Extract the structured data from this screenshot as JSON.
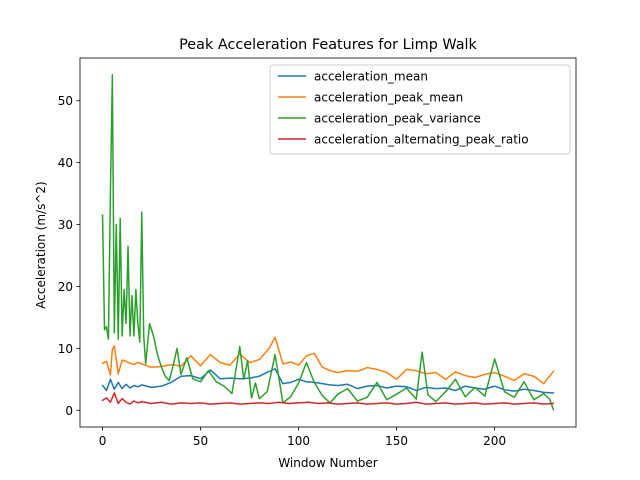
{
  "chart_data": {
    "type": "line",
    "title": "Peak Acceleration Features for Limp Walk",
    "xlabel": "Window Number",
    "ylabel": "Acceleration (m/s^2)",
    "xlim": [
      -11.5,
      241.5
    ],
    "ylim": [
      -2.7,
      56.9
    ],
    "xticks": [
      0,
      50,
      100,
      150,
      200
    ],
    "yticks": [
      0,
      10,
      20,
      30,
      40,
      50
    ],
    "legend_position": "upper right",
    "series": [
      {
        "name": "acceleration_mean",
        "color": "#1f77b4",
        "x": [
          0,
          2,
          4,
          6,
          8,
          10,
          12,
          14,
          16,
          18,
          20,
          25,
          30,
          35,
          40,
          45,
          50,
          55,
          60,
          65,
          70,
          75,
          80,
          85,
          88,
          92,
          96,
          100,
          104,
          108,
          112,
          116,
          120,
          125,
          130,
          135,
          140,
          145,
          150,
          155,
          160,
          165,
          170,
          175,
          180,
          185,
          190,
          195,
          200,
          205,
          210,
          215,
          220,
          225,
          230
        ],
        "y": [
          4.0,
          3.2,
          5.0,
          3.4,
          4.5,
          3.5,
          4.2,
          3.6,
          4.0,
          3.8,
          4.1,
          3.7,
          3.9,
          4.5,
          5.5,
          5.6,
          5.1,
          6.5,
          5.1,
          5.2,
          5.1,
          5.2,
          5.5,
          6.3,
          6.7,
          4.3,
          4.5,
          5.0,
          4.6,
          4.5,
          4.3,
          4.1,
          4.0,
          4.2,
          3.5,
          3.9,
          4.0,
          3.6,
          3.9,
          3.8,
          3.2,
          3.7,
          3.5,
          3.6,
          3.2,
          3.9,
          3.6,
          3.4,
          3.9,
          3.3,
          3.1,
          3.4,
          3.2,
          2.9,
          2.8
        ]
      },
      {
        "name": "acceleration_peak_mean",
        "color": "#ff7f0e",
        "x": [
          0,
          2,
          4,
          5,
          6,
          8,
          10,
          12,
          14,
          16,
          18,
          20,
          24,
          28,
          32,
          36,
          40,
          45,
          50,
          55,
          60,
          65,
          70,
          75,
          80,
          85,
          88,
          92,
          96,
          100,
          104,
          108,
          112,
          116,
          120,
          125,
          130,
          135,
          140,
          145,
          150,
          155,
          160,
          165,
          170,
          175,
          180,
          185,
          190,
          195,
          200,
          205,
          210,
          215,
          220,
          225,
          230
        ],
        "y": [
          7.6,
          7.9,
          5.7,
          9.8,
          10.4,
          5.9,
          8.1,
          7.9,
          7.6,
          7.4,
          7.7,
          7.5,
          7.0,
          7.0,
          7.2,
          7.4,
          7.1,
          8.8,
          7.2,
          9.0,
          7.7,
          7.3,
          9.1,
          7.7,
          8.2,
          10.0,
          11.8,
          7.5,
          7.8,
          7.3,
          8.8,
          9.2,
          7.0,
          6.4,
          6.1,
          6.4,
          6.3,
          6.9,
          6.6,
          6.1,
          5.0,
          6.6,
          6.4,
          5.9,
          6.1,
          5.0,
          6.2,
          5.6,
          5.3,
          5.8,
          6.1,
          5.5,
          4.8,
          5.9,
          5.5,
          4.3,
          6.3
        ]
      },
      {
        "name": "acceleration_peak_variance",
        "color": "#2ca02c",
        "x": [
          0,
          1,
          2,
          3,
          4,
          5,
          6,
          7,
          8,
          9,
          10,
          11,
          12,
          13,
          14,
          15,
          16,
          17,
          18,
          19,
          20,
          21,
          22,
          24,
          26,
          28,
          30,
          32,
          34,
          36,
          38,
          40,
          43,
          46,
          50,
          54,
          58,
          62,
          66,
          70,
          72,
          74,
          76,
          78,
          80,
          84,
          88,
          92,
          96,
          100,
          104,
          108,
          112,
          116,
          120,
          125,
          130,
          135,
          140,
          145,
          150,
          155,
          160,
          163,
          166,
          170,
          175,
          180,
          185,
          190,
          195,
          200,
          205,
          210,
          215,
          220,
          225,
          228,
          230
        ],
        "y": [
          31.5,
          13.0,
          13.5,
          11.5,
          35.0,
          54.2,
          12.5,
          30.0,
          11.5,
          31.0,
          12.0,
          19.5,
          14.0,
          26.5,
          12.0,
          18.5,
          12.0,
          19.5,
          14.0,
          11.0,
          32.0,
          12.0,
          7.5,
          14.0,
          12.0,
          9.0,
          7.0,
          5.5,
          4.8,
          7.2,
          10.0,
          5.8,
          8.5,
          5.1,
          4.6,
          6.4,
          4.6,
          3.9,
          2.7,
          10.3,
          5.0,
          8.0,
          2.0,
          4.4,
          1.9,
          3.0,
          9.0,
          1.2,
          2.2,
          4.4,
          7.7,
          4.5,
          2.4,
          1.2,
          2.6,
          3.5,
          1.5,
          2.1,
          4.5,
          1.7,
          2.6,
          3.6,
          1.8,
          9.4,
          2.5,
          1.4,
          3.0,
          5.0,
          2.2,
          3.7,
          2.3,
          8.3,
          3.0,
          2.1,
          4.6,
          1.7,
          2.7,
          1.8,
          0.1
        ]
      },
      {
        "name": "acceleration_alternating_peak_ratio",
        "color": "#d62728",
        "x": [
          0,
          2,
          4,
          6,
          8,
          10,
          12,
          14,
          16,
          18,
          20,
          25,
          30,
          35,
          40,
          45,
          50,
          55,
          60,
          65,
          70,
          75,
          80,
          85,
          90,
          95,
          100,
          105,
          110,
          115,
          120,
          125,
          130,
          135,
          140,
          145,
          150,
          155,
          160,
          165,
          170,
          175,
          180,
          185,
          190,
          195,
          200,
          205,
          210,
          215,
          220,
          225,
          230
        ],
        "y": [
          1.6,
          2.0,
          1.3,
          2.8,
          1.1,
          1.9,
          1.3,
          1.0,
          1.5,
          1.2,
          1.4,
          1.1,
          1.3,
          1.0,
          1.2,
          1.1,
          1.2,
          1.0,
          1.1,
          1.2,
          1.0,
          1.1,
          1.2,
          1.1,
          1.3,
          1.1,
          1.2,
          1.3,
          1.1,
          1.2,
          1.0,
          1.1,
          1.2,
          1.0,
          1.1,
          1.2,
          1.0,
          1.1,
          1.3,
          1.0,
          1.1,
          1.2,
          1.0,
          1.1,
          1.2,
          1.0,
          1.1,
          1.2,
          1.0,
          1.1,
          1.2,
          1.0,
          1.1
        ]
      }
    ]
  }
}
